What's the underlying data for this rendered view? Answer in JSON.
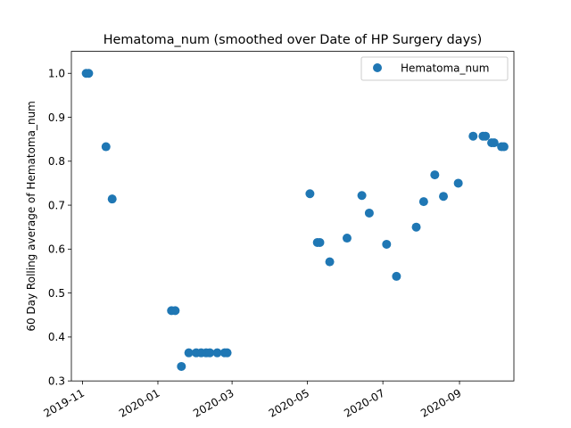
{
  "chart_data": {
    "type": "scatter",
    "title": "Hematoma_num (smoothed over Date of HP Surgery days)",
    "xlabel": "",
    "ylabel": "60 Day Rolling average of Hematoma_num",
    "x_type": "date",
    "xlim": [
      "2019-10-23",
      "2020-10-15"
    ],
    "ylim": [
      0.3,
      1.05
    ],
    "x_ticks": [
      "2019-11-01",
      "2020-01-01",
      "2020-03-01",
      "2020-05-01",
      "2020-07-01",
      "2020-09-01"
    ],
    "x_tick_labels": [
      "2019-11",
      "2020-01",
      "2020-03",
      "2020-05",
      "2020-07",
      "2020-09"
    ],
    "y_ticks": [
      0.3,
      0.4,
      0.5,
      0.6,
      0.7,
      0.8,
      0.9,
      1.0
    ],
    "y_tick_labels": [
      "0.3",
      "0.4",
      "0.5",
      "0.6",
      "0.7",
      "0.8",
      "0.9",
      "1.0"
    ],
    "grid": false,
    "legend_position": "top-right",
    "series": [
      {
        "name": "Hematoma_num",
        "color": "#1f77b4",
        "points": [
          {
            "x": "2019-11-04",
            "y": 1.0
          },
          {
            "x": "2019-11-06",
            "y": 1.0
          },
          {
            "x": "2019-11-20",
            "y": 0.833
          },
          {
            "x": "2019-11-25",
            "y": 0.714
          },
          {
            "x": "2020-01-12",
            "y": 0.46
          },
          {
            "x": "2020-01-15",
            "y": 0.46
          },
          {
            "x": "2020-01-20",
            "y": 0.333
          },
          {
            "x": "2020-01-26",
            "y": 0.364
          },
          {
            "x": "2020-02-01",
            "y": 0.364
          },
          {
            "x": "2020-02-05",
            "y": 0.364
          },
          {
            "x": "2020-02-09",
            "y": 0.364
          },
          {
            "x": "2020-02-12",
            "y": 0.364
          },
          {
            "x": "2020-02-18",
            "y": 0.364
          },
          {
            "x": "2020-02-24",
            "y": 0.364
          },
          {
            "x": "2020-02-26",
            "y": 0.364
          },
          {
            "x": "2020-05-03",
            "y": 0.726
          },
          {
            "x": "2020-05-09",
            "y": 0.615
          },
          {
            "x": "2020-05-11",
            "y": 0.615
          },
          {
            "x": "2020-05-19",
            "y": 0.571
          },
          {
            "x": "2020-06-02",
            "y": 0.625
          },
          {
            "x": "2020-06-14",
            "y": 0.722
          },
          {
            "x": "2020-06-20",
            "y": 0.682
          },
          {
            "x": "2020-07-04",
            "y": 0.611
          },
          {
            "x": "2020-07-12",
            "y": 0.538
          },
          {
            "x": "2020-07-28",
            "y": 0.65
          },
          {
            "x": "2020-08-03",
            "y": 0.708
          },
          {
            "x": "2020-08-12",
            "y": 0.769
          },
          {
            "x": "2020-08-19",
            "y": 0.72
          },
          {
            "x": "2020-08-31",
            "y": 0.75
          },
          {
            "x": "2020-09-12",
            "y": 0.857
          },
          {
            "x": "2020-09-20",
            "y": 0.857
          },
          {
            "x": "2020-09-22",
            "y": 0.857
          },
          {
            "x": "2020-09-27",
            "y": 0.842
          },
          {
            "x": "2020-09-29",
            "y": 0.842
          },
          {
            "x": "2020-10-05",
            "y": 0.833
          },
          {
            "x": "2020-10-07",
            "y": 0.833
          }
        ]
      }
    ]
  }
}
